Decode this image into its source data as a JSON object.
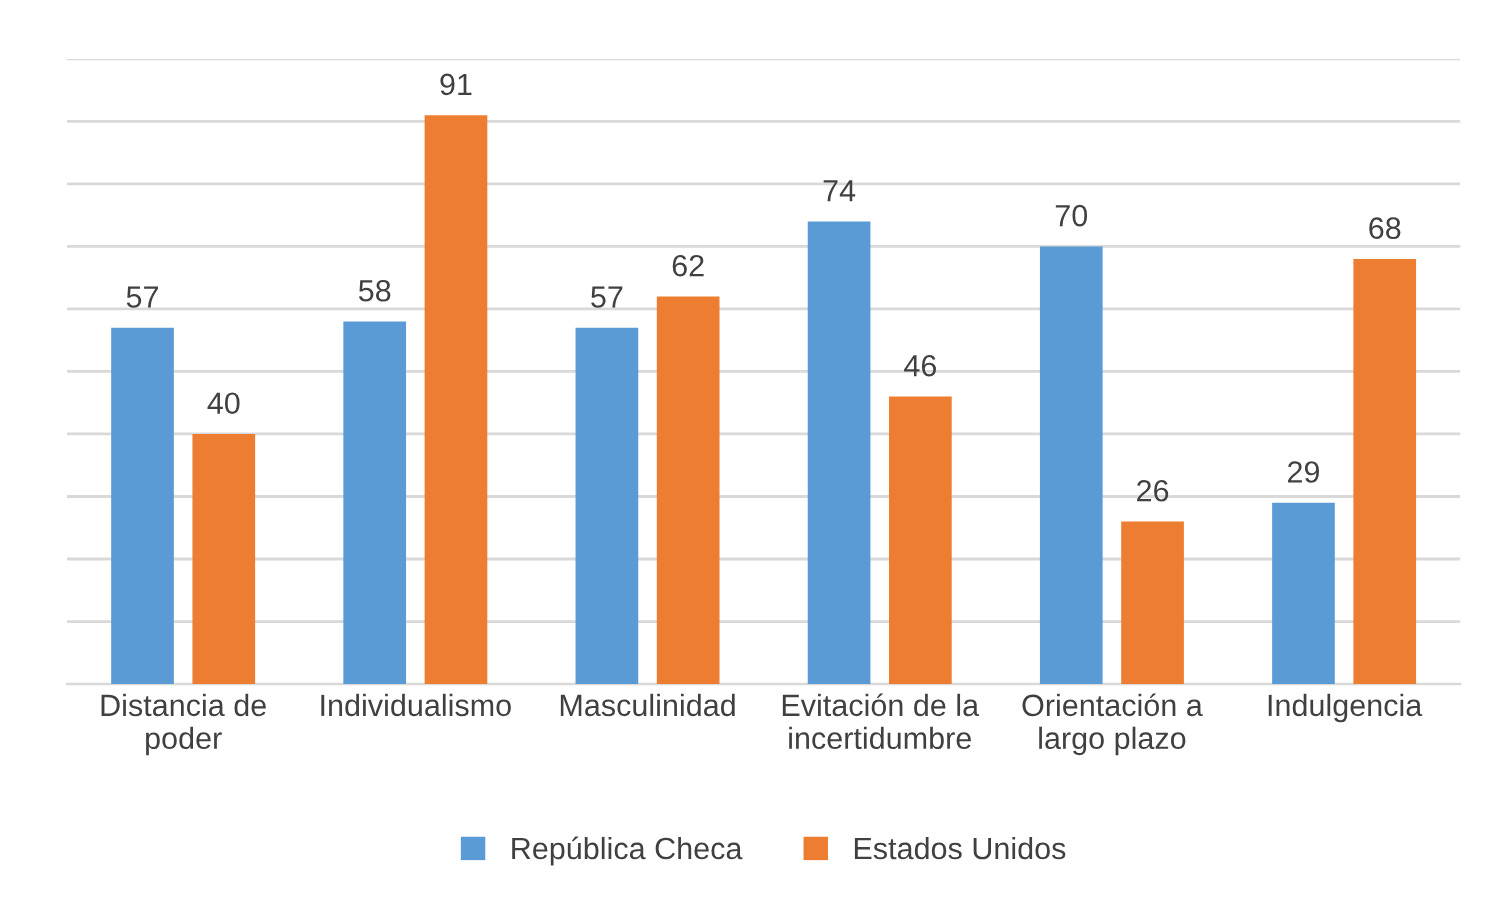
{
  "chart_data": {
    "type": "bar",
    "categories": [
      "Distancia de\npoder",
      "Individualismo",
      "Masculinidad",
      "Evitación de la\nincertidumbre",
      "Orientación a\nlargo plazo",
      "Indulgencia"
    ],
    "series": [
      {
        "name": "República Checa",
        "color": "#5b9bd5",
        "values": [
          57,
          58,
          57,
          74,
          70,
          29
        ]
      },
      {
        "name": "Estados Unidos",
        "color": "#ed7d31",
        "values": [
          40,
          91,
          62,
          46,
          26,
          68
        ]
      }
    ],
    "ylim": [
      0,
      100
    ],
    "yticks": [
      {
        "value": 0,
        "label": null
      },
      {
        "value": 10,
        "label": null
      },
      {
        "value": 20,
        "label": null
      },
      {
        "value": 30,
        "label": null
      },
      {
        "value": 40,
        "label": null
      },
      {
        "value": 50,
        "label": null
      },
      {
        "value": 60,
        "label": null
      },
      {
        "value": 70,
        "label": null
      },
      {
        "value": 80,
        "label": null
      },
      {
        "value": 90,
        "label": null
      },
      {
        "value": 100,
        "label": null
      }
    ],
    "tick_labels": "x",
    "grid": "y",
    "legend": "bottom",
    "data_labels": true
  }
}
